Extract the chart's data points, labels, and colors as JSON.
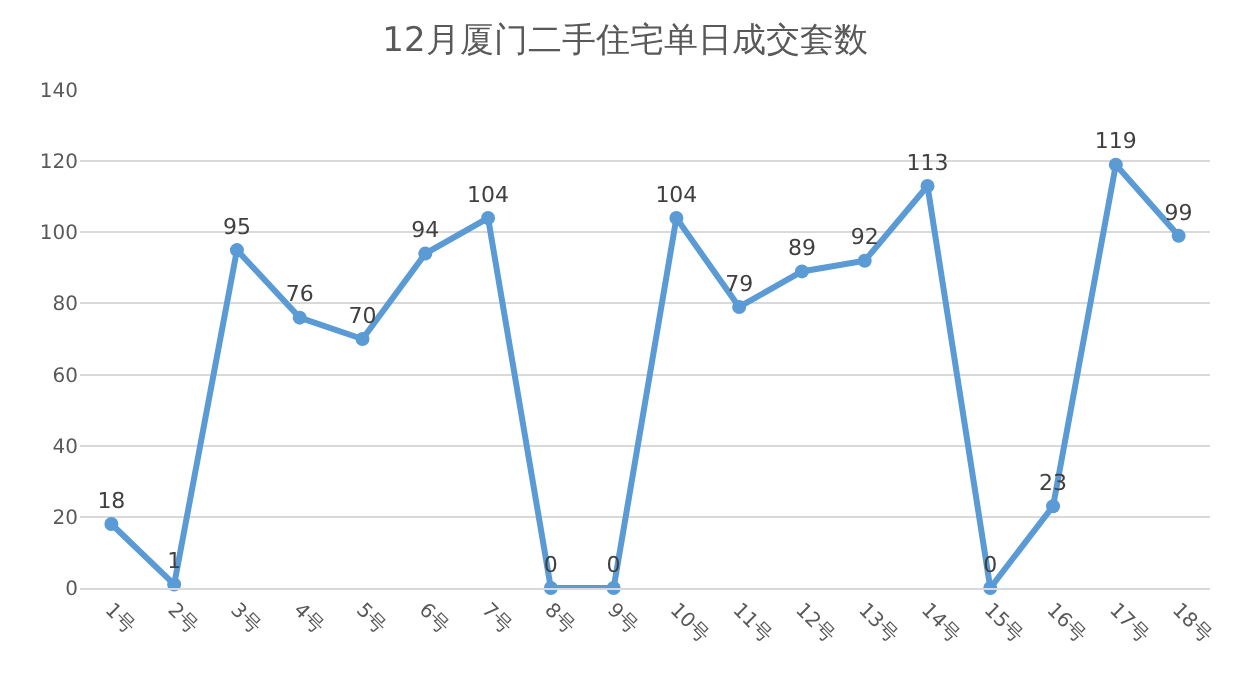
{
  "chart_data": {
    "type": "line",
    "title": "12月厦门二手住宅单日成交套数",
    "categories": [
      "1号",
      "2号",
      "3号",
      "4号",
      "5号",
      "6号",
      "7号",
      "8号",
      "9号",
      "10号",
      "11号",
      "12号",
      "13号",
      "14号",
      "15号",
      "16号",
      "17号",
      "18号"
    ],
    "series": [
      {
        "color": "#5b9bd5",
        "values": [
          18,
          1,
          95,
          76,
          70,
          94,
          104,
          0,
          0,
          104,
          79,
          89,
          92,
          113,
          0,
          23,
          119,
          99
        ]
      }
    ],
    "ylim": [
      0,
      140
    ],
    "yticks": [
      0,
      20,
      40,
      60,
      80,
      100,
      120,
      140
    ],
    "grid": "y",
    "marker": "circle",
    "line_style": "solid",
    "data_labels": true,
    "legend": false
  }
}
